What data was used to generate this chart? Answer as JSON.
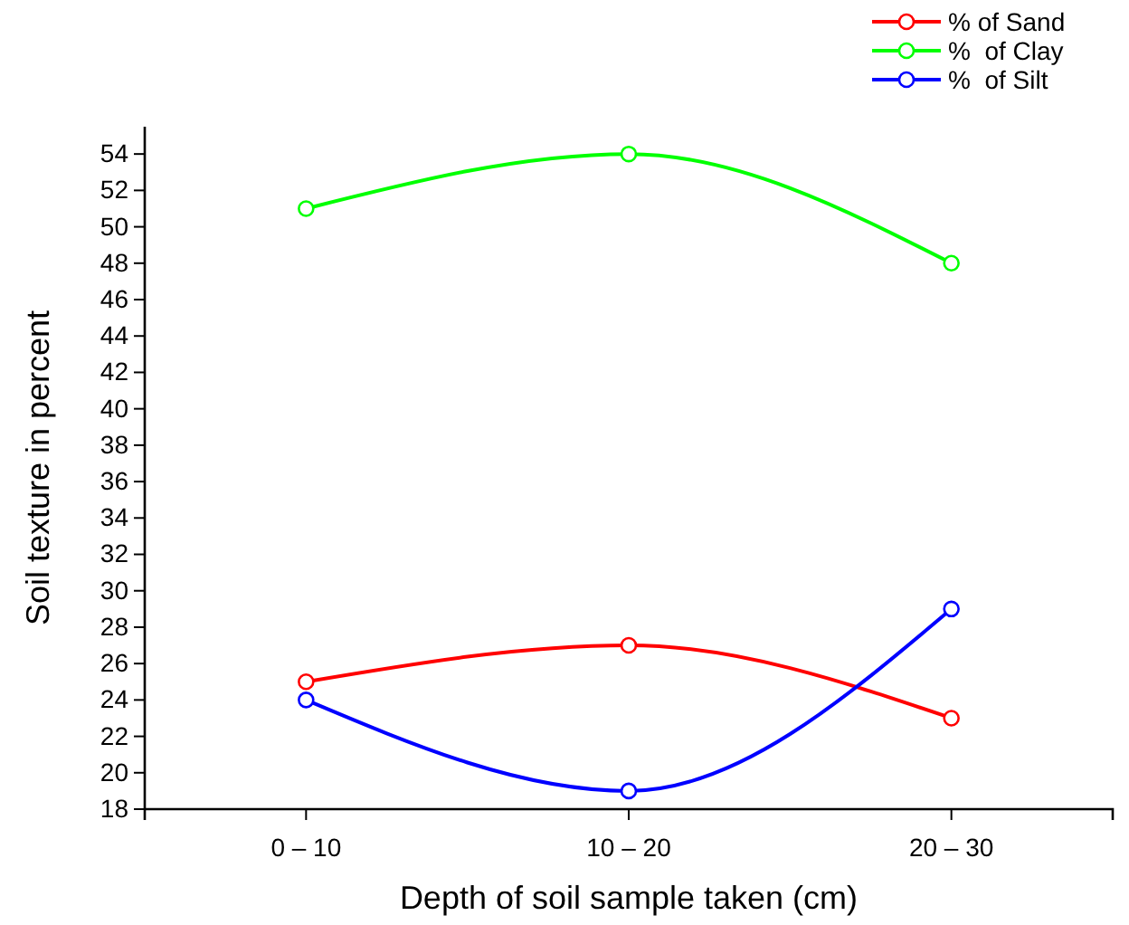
{
  "chart_data": {
    "type": "line",
    "xlabel": "Depth of soil sample taken (cm)",
    "ylabel": "Soil texture in percent",
    "categories": [
      "0 – 10",
      "10 – 20",
      "20 – 30"
    ],
    "series": [
      {
        "name": "% of Sand",
        "color": "#ff0000",
        "values": [
          25,
          27,
          23
        ]
      },
      {
        "name": "%  of Clay",
        "color": "#00ff00",
        "values": [
          51,
          54,
          48
        ]
      },
      {
        "name": "%  of Silt",
        "color": "#0000ff",
        "values": [
          24,
          19,
          29
        ]
      }
    ],
    "ylim": [
      18,
      55.5
    ],
    "yticks": [
      18,
      20,
      22,
      24,
      26,
      28,
      30,
      32,
      34,
      36,
      38,
      40,
      42,
      44,
      46,
      48,
      50,
      52,
      54
    ],
    "grid": false,
    "legend": "top right",
    "marker": "circle",
    "line_style": "solid"
  }
}
